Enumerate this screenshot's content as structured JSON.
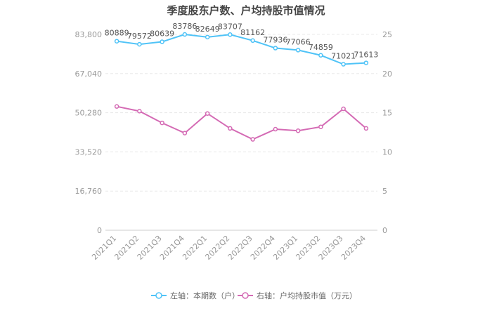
{
  "chart_data": {
    "type": "line",
    "title": "季度股东户数、户均持股市值情况",
    "categories": [
      "2021Q1",
      "2021Q2",
      "2021Q3",
      "2021Q4",
      "2022Q1",
      "2022Q2",
      "2022Q3",
      "2022Q4",
      "2023Q1",
      "2023Q2",
      "2023Q3",
      "2023Q4"
    ],
    "left_axis": {
      "ticks": [
        "0",
        "16,760",
        "33,520",
        "50,280",
        "67,040",
        "83,800"
      ],
      "min": 0,
      "max": 83800
    },
    "right_axis": {
      "ticks": [
        "0",
        "5",
        "10",
        "15",
        "20",
        "25"
      ],
      "min": 0,
      "max": 25
    },
    "series": [
      {
        "name": "左轴：本期数（户）",
        "axis": "left",
        "color": "#4fc3f7",
        "values": [
          80889,
          79572,
          80639,
          83786,
          82649,
          83707,
          81162,
          77936,
          77066,
          74859,
          71021,
          71613
        ],
        "labels": [
          "80889",
          "79572",
          "80639",
          "83786",
          "82649",
          "83707",
          "81162",
          "77936",
          "77066",
          "74859",
          "71021",
          "71613"
        ]
      },
      {
        "name": "右轴：户均持股市值（万元）",
        "axis": "right",
        "color": "#d46ab4",
        "values": [
          15.8,
          15.2,
          13.7,
          12.4,
          14.9,
          13.0,
          11.6,
          12.9,
          12.7,
          13.2,
          15.5,
          13.0
        ]
      }
    ],
    "grid": true,
    "legend_position": "bottom"
  }
}
